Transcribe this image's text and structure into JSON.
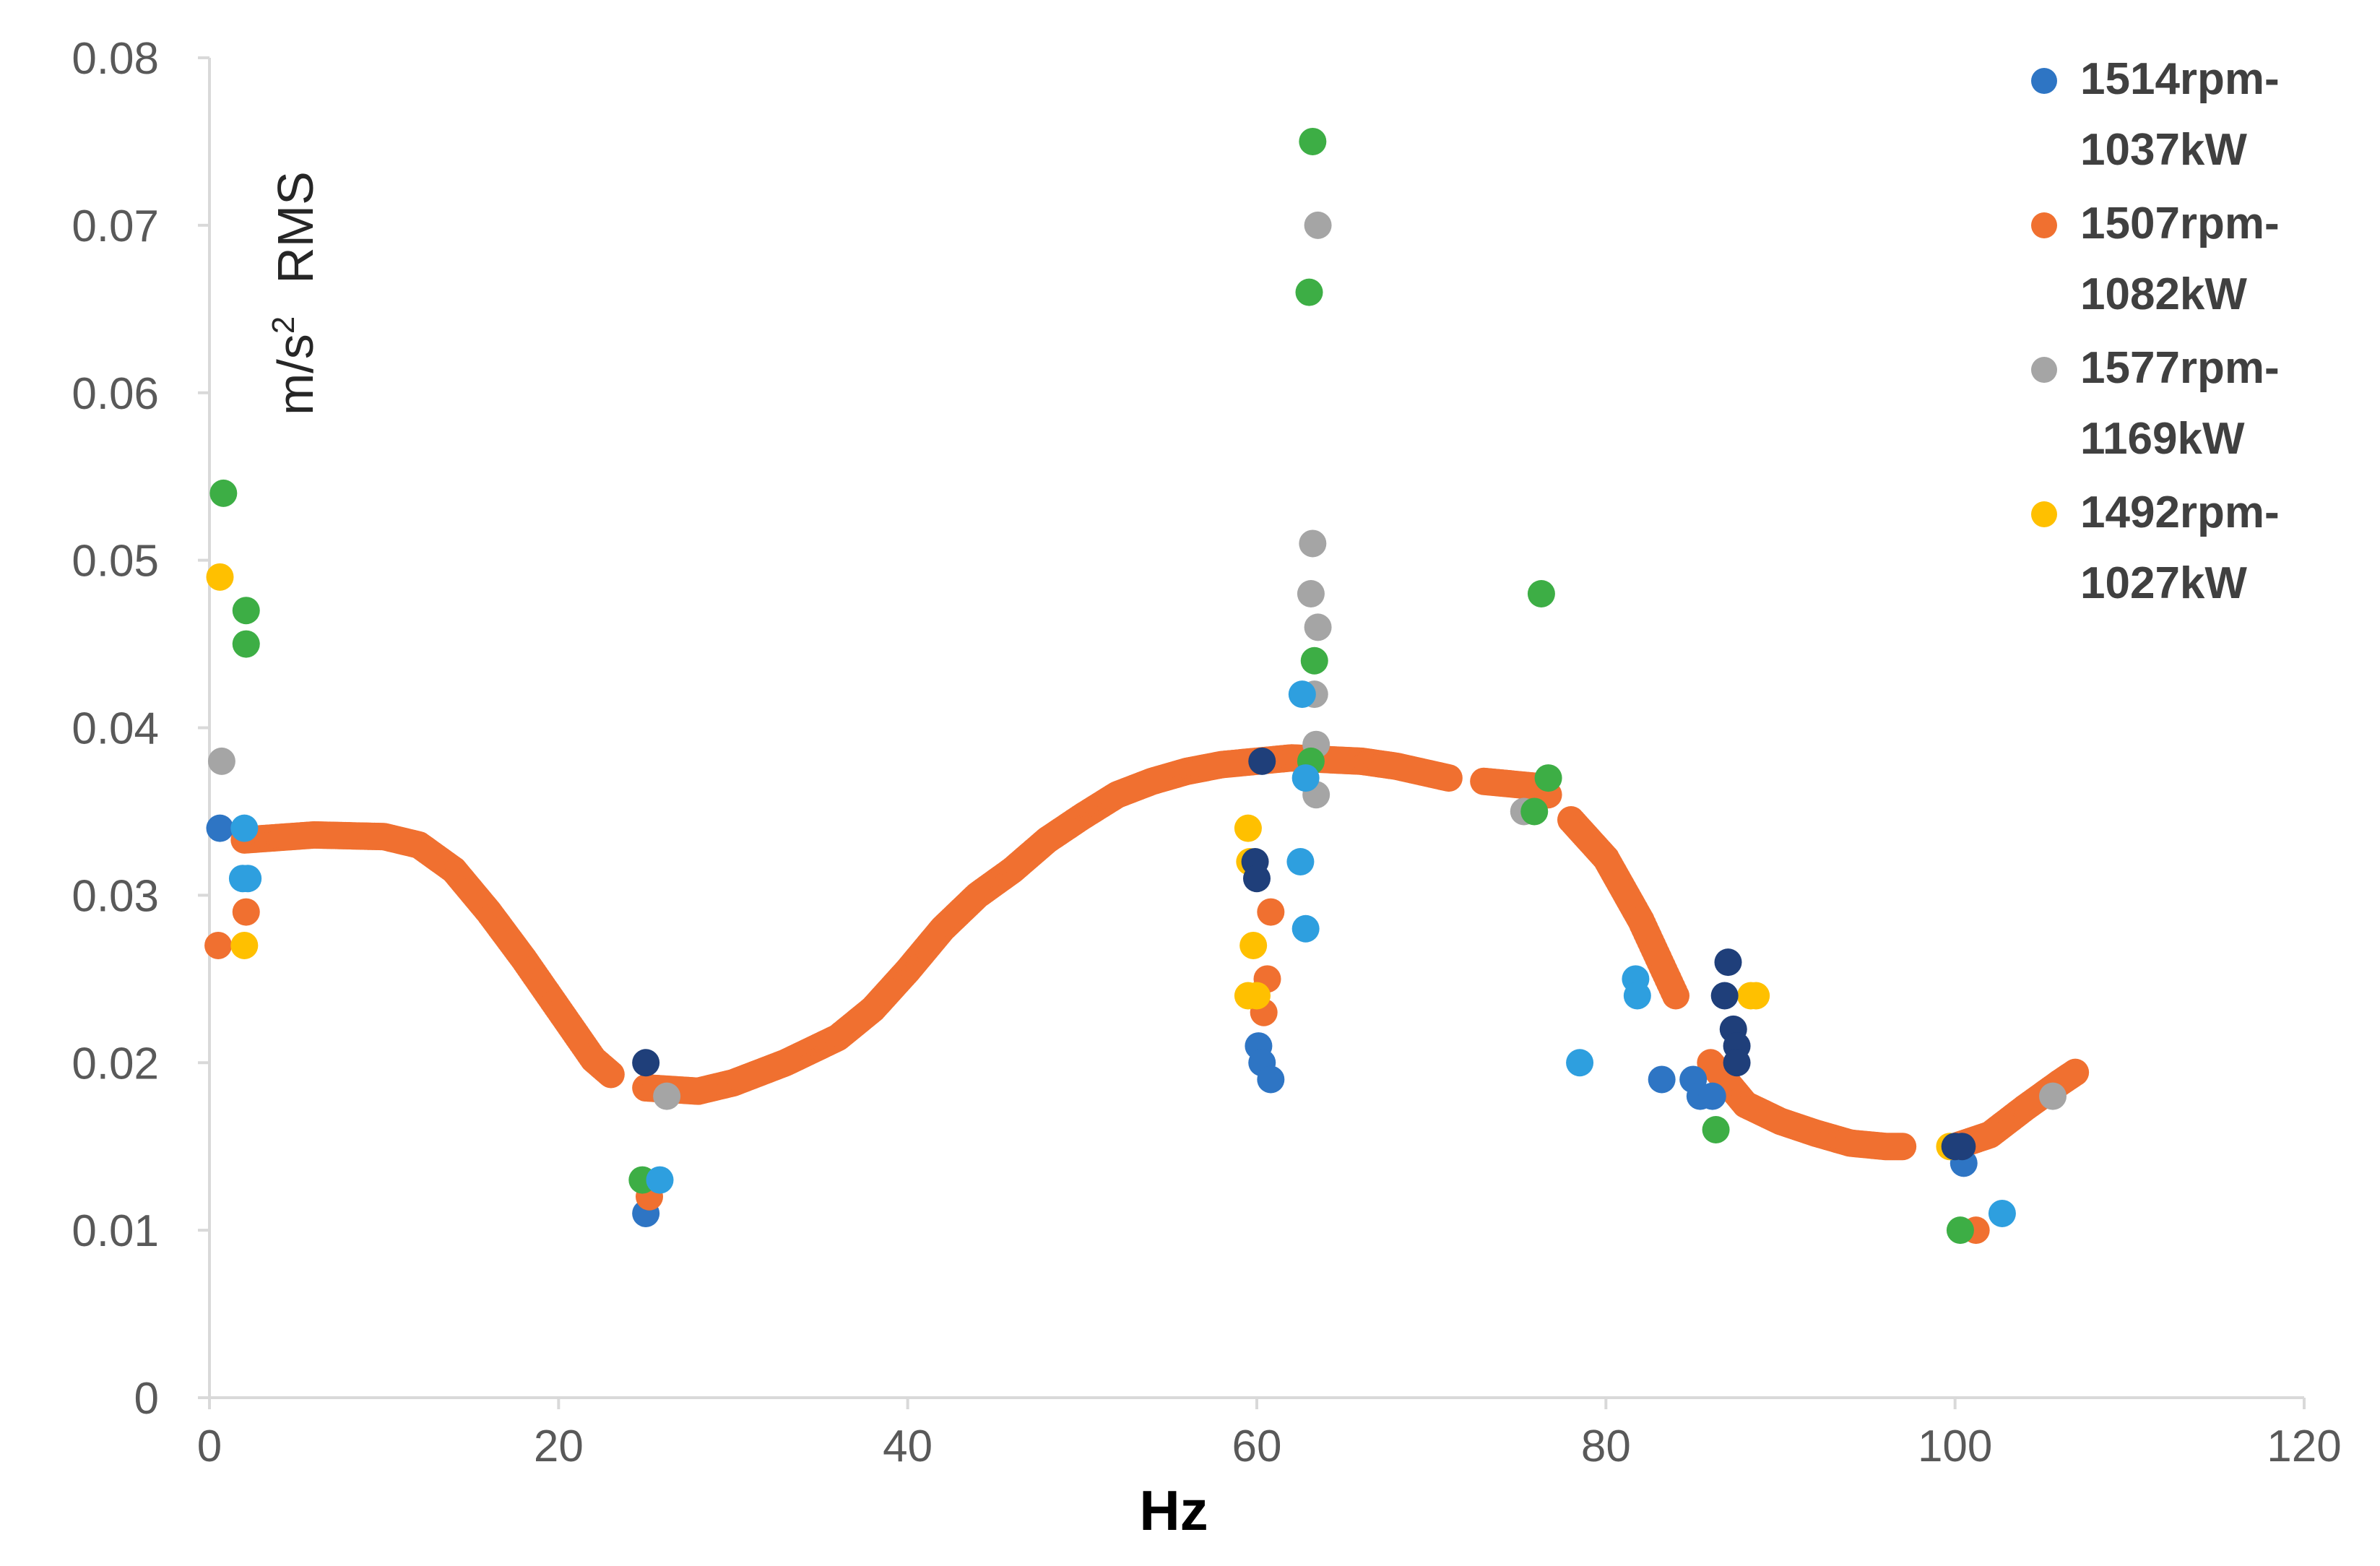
{
  "chart_data": {
    "type": "scatter",
    "title": "",
    "xlabel": "Hz",
    "ylabel_parts": {
      "unit": "m/s",
      "sup": "2",
      "suffix": "RMS"
    },
    "xlim": [
      0,
      120
    ],
    "ylim": [
      0,
      0.08
    ],
    "x_ticks": [
      "0",
      "20",
      "40",
      "60",
      "80",
      "100",
      "120"
    ],
    "y_ticks": [
      "0",
      "0.01",
      "0.02",
      "0.03",
      "0.04",
      "0.05",
      "0.06",
      "0.07",
      "0.08"
    ],
    "grid": false,
    "legend_position": "top-right",
    "legend": [
      {
        "line1": "1514rpm-",
        "line2": "1037kW",
        "color": "#2E75C4"
      },
      {
        "line1": "1507rpm-",
        "line2": "1082kW",
        "color": "#F07030"
      },
      {
        "line1": "1577rpm-",
        "line2": "1169kW",
        "color": "#A5A5A5"
      },
      {
        "line1": "1492rpm-",
        "line2": "1027kW",
        "color": "#FFC000"
      }
    ],
    "orange_curve": [
      [
        2,
        0.0333
      ],
      [
        6,
        0.0336
      ],
      [
        10,
        0.0335
      ],
      [
        12,
        0.033
      ],
      [
        14,
        0.0315
      ],
      [
        16,
        0.029
      ],
      [
        18,
        0.0262
      ],
      [
        20,
        0.0232
      ],
      [
        22,
        0.0202
      ],
      [
        23,
        0.0193
      ],
      [
        25,
        0.0185
      ],
      [
        28,
        0.0183
      ],
      [
        30,
        0.0188
      ],
      [
        33,
        0.02
      ],
      [
        36,
        0.0215
      ],
      [
        38,
        0.0232
      ],
      [
        40,
        0.0255
      ],
      [
        42,
        0.028
      ],
      [
        44,
        0.03
      ],
      [
        46,
        0.0315
      ],
      [
        48,
        0.0333
      ],
      [
        50,
        0.0347
      ],
      [
        52,
        0.036
      ],
      [
        54,
        0.0368
      ],
      [
        56,
        0.0374
      ],
      [
        58,
        0.0378
      ],
      [
        60,
        0.038
      ],
      [
        62,
        0.0382
      ],
      [
        64,
        0.0381
      ],
      [
        66,
        0.038
      ],
      [
        68,
        0.0377
      ],
      [
        71,
        0.037
      ],
      [
        73,
        0.0368
      ],
      [
        76,
        0.0365
      ],
      [
        78,
        0.0345
      ],
      [
        80,
        0.0322
      ],
      [
        82,
        0.0285
      ],
      [
        84,
        0.024
      ],
      [
        86,
        0.02
      ],
      [
        88,
        0.0175
      ],
      [
        90,
        0.0165
      ],
      [
        92,
        0.0158
      ],
      [
        94,
        0.0152
      ],
      [
        96,
        0.015
      ],
      [
        98,
        0.015
      ],
      [
        100,
        0.015
      ],
      [
        102,
        0.0157
      ],
      [
        104,
        0.0173
      ],
      [
        106,
        0.0188
      ],
      [
        107,
        0.0195
      ]
    ],
    "curve_gaps": [
      [
        23,
        25
      ],
      [
        71,
        73
      ],
      [
        76,
        78
      ],
      [
        84,
        86
      ],
      [
        97,
        100
      ]
    ],
    "scatter_series": [
      {
        "name": "1514rpm-1037kW",
        "color": "#2E75C4",
        "points": [
          [
            0.6,
            0.034
          ],
          [
            25,
            0.011
          ],
          [
            60.1,
            0.021
          ],
          [
            60.3,
            0.02
          ],
          [
            60.8,
            0.019
          ],
          [
            83.2,
            0.019
          ],
          [
            85,
            0.019
          ],
          [
            85.4,
            0.018
          ],
          [
            86.1,
            0.018
          ],
          [
            100.5,
            0.014
          ]
        ]
      },
      {
        "name": "1507rpm-1082kW",
        "color": "#F07030",
        "points": [
          [
            0.5,
            0.027
          ],
          [
            2.1,
            0.029
          ],
          [
            25.2,
            0.012
          ],
          [
            60.4,
            0.023
          ],
          [
            60.6,
            0.025
          ],
          [
            60.8,
            0.029
          ],
          [
            76.7,
            0.036
          ],
          [
            101.2,
            0.01
          ]
        ]
      },
      {
        "name": "1577rpm-1169kW",
        "color": "#A5A5A5",
        "points": [
          [
            0.7,
            0.038
          ],
          [
            63.5,
            0.07
          ],
          [
            63.2,
            0.051
          ],
          [
            63.1,
            0.048
          ],
          [
            63.5,
            0.046
          ],
          [
            63.3,
            0.042
          ],
          [
            63.4,
            0.039
          ],
          [
            63.4,
            0.036
          ],
          [
            75.3,
            0.035
          ],
          [
            26.2,
            0.018
          ],
          [
            105.6,
            0.018
          ]
        ]
      },
      {
        "name": "1492rpm-1027kW",
        "color": "#FFC000",
        "points": [
          [
            0.6,
            0.049
          ],
          [
            2.0,
            0.027
          ],
          [
            59.5,
            0.034
          ],
          [
            59.6,
            0.032
          ],
          [
            59.8,
            0.027
          ],
          [
            59.5,
            0.024
          ],
          [
            60.0,
            0.024
          ],
          [
            88.3,
            0.024
          ],
          [
            88.6,
            0.024
          ],
          [
            99.7,
            0.015
          ]
        ]
      },
      {
        "name": "unlabeled-green",
        "color": "#3DAE45",
        "points": [
          [
            0.8,
            0.054
          ],
          [
            2.1,
            0.047
          ],
          [
            2.1,
            0.045
          ],
          [
            63.2,
            0.075
          ],
          [
            63.0,
            0.066
          ],
          [
            63.3,
            0.044
          ],
          [
            63.1,
            0.038
          ],
          [
            76.3,
            0.048
          ],
          [
            76.7,
            0.037
          ],
          [
            75.9,
            0.035
          ],
          [
            86.3,
            0.016
          ],
          [
            24.8,
            0.013
          ],
          [
            100.3,
            0.01
          ]
        ]
      },
      {
        "name": "unlabeled-light-blue",
        "color": "#2E9FDF",
        "points": [
          [
            2.0,
            0.034
          ],
          [
            1.9,
            0.031
          ],
          [
            2.2,
            0.031
          ],
          [
            25.8,
            0.013
          ],
          [
            62.6,
            0.042
          ],
          [
            62.8,
            0.037
          ],
          [
            62.5,
            0.032
          ],
          [
            62.8,
            0.028
          ],
          [
            78.5,
            0.02
          ],
          [
            81.7,
            0.025
          ],
          [
            81.8,
            0.024
          ],
          [
            102.7,
            0.011
          ]
        ]
      },
      {
        "name": "unlabeled-navy",
        "color": "#1F3F7A",
        "points": [
          [
            25,
            0.02
          ],
          [
            60.3,
            0.038
          ],
          [
            59.9,
            0.032
          ],
          [
            60.0,
            0.031
          ],
          [
            87.0,
            0.026
          ],
          [
            86.8,
            0.024
          ],
          [
            87.3,
            0.022
          ],
          [
            87.5,
            0.021
          ],
          [
            87.5,
            0.02
          ],
          [
            100.0,
            0.015
          ],
          [
            100.4,
            0.015
          ]
        ]
      }
    ]
  }
}
